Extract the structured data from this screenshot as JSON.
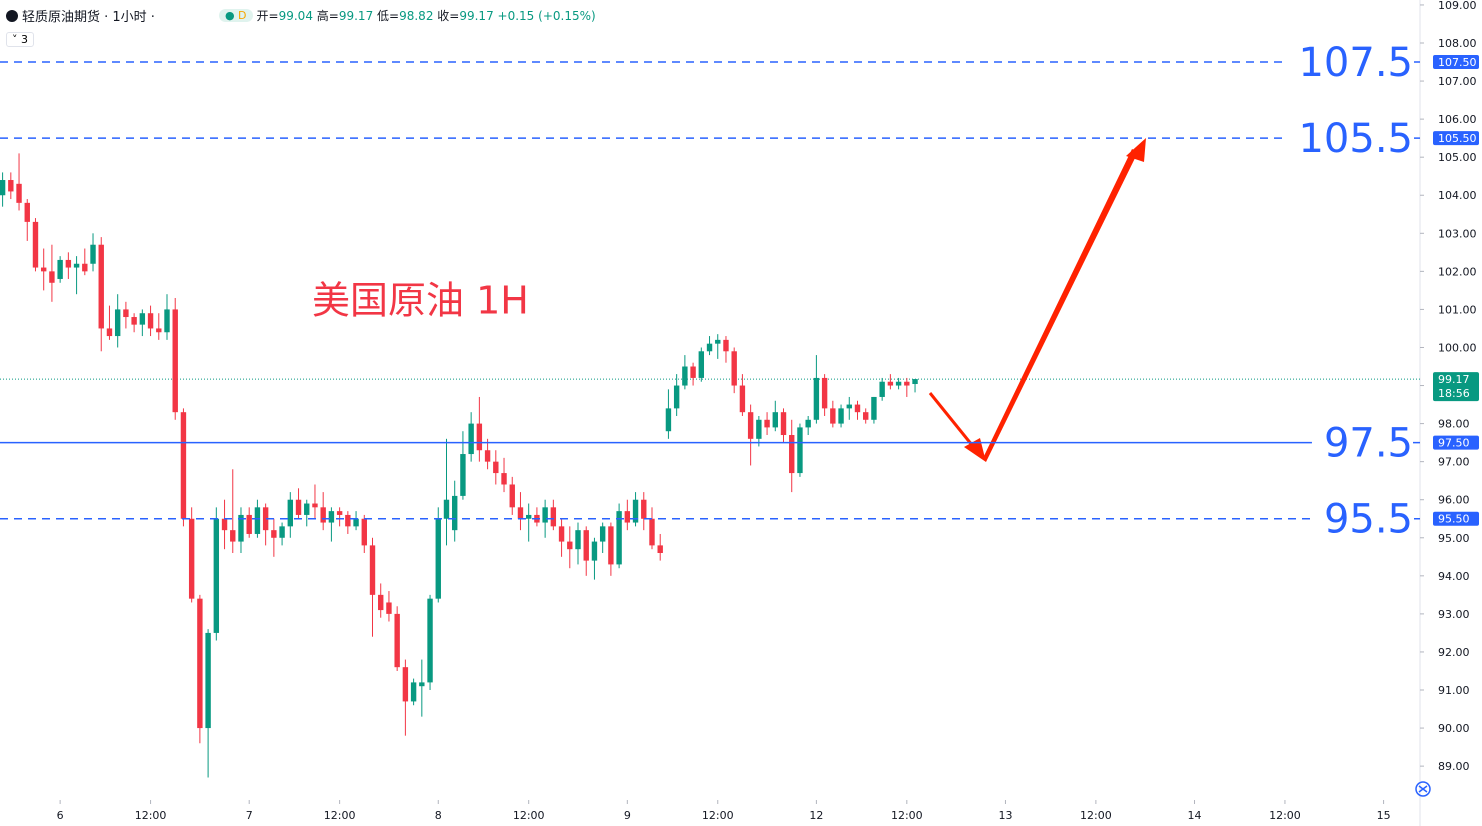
{
  "header": {
    "title": "轻质原油期货 · 1小时 ·",
    "badge": "D",
    "open_label": "开=",
    "open": 99.04,
    "high_label": "高=",
    "high": 99.17,
    "low_label": "低=",
    "low": 98.82,
    "close_label": "收=",
    "close": 99.17,
    "change": "+0.15",
    "change_pct": "(+0.15%)",
    "indicator": "3"
  },
  "chart_data": {
    "type": "candlestick",
    "annotation": "美国原油 1H",
    "up_color": "#089981",
    "down_color": "#f23645",
    "x": [
      0,
      1,
      2,
      3,
      4,
      5,
      6,
      7,
      8,
      9,
      10,
      11,
      12,
      13,
      14,
      15,
      16,
      17,
      18,
      19,
      20,
      21,
      22,
      23,
      24,
      25,
      26,
      27,
      28,
      29,
      30,
      31,
      32,
      33,
      34,
      35,
      36,
      37,
      38,
      39,
      40,
      41,
      42,
      43,
      44,
      45,
      46,
      47,
      48,
      49,
      50,
      51,
      52,
      53,
      54,
      55,
      56,
      57,
      58,
      59,
      60,
      61,
      62,
      63,
      64,
      65,
      66,
      67,
      68,
      69,
      70,
      71,
      72,
      73,
      74,
      75,
      76,
      77,
      78,
      79,
      80,
      81,
      82,
      83,
      84,
      85,
      86,
      87,
      88,
      89,
      90,
      91,
      92,
      93,
      94,
      95,
      96,
      97,
      98,
      99,
      100,
      101,
      102,
      103,
      104,
      105,
      106,
      107,
      108,
      109,
      110,
      111
    ],
    "ohlc": [
      [
        104.0,
        104.6,
        103.7,
        104.4
      ],
      [
        104.4,
        104.6,
        103.9,
        104.1
      ],
      [
        104.3,
        105.1,
        103.6,
        103.8
      ],
      [
        103.8,
        103.9,
        102.8,
        103.3
      ],
      [
        103.3,
        103.4,
        102.0,
        102.1
      ],
      [
        102.1,
        102.6,
        101.5,
        102.0
      ],
      [
        102.0,
        102.7,
        101.2,
        101.7
      ],
      [
        101.8,
        102.4,
        101.7,
        102.3
      ],
      [
        102.3,
        102.5,
        101.8,
        102.1
      ],
      [
        102.1,
        102.4,
        101.4,
        102.2
      ],
      [
        102.2,
        102.6,
        101.9,
        102.0
      ],
      [
        102.2,
        103.0,
        102.0,
        102.7
      ],
      [
        102.7,
        102.9,
        99.9,
        100.5
      ],
      [
        100.5,
        101.1,
        100.2,
        100.3
      ],
      [
        100.3,
        101.4,
        100.0,
        101.0
      ],
      [
        101.0,
        101.2,
        100.5,
        100.8
      ],
      [
        100.8,
        100.9,
        100.4,
        100.6
      ],
      [
        100.6,
        101.0,
        100.3,
        100.9
      ],
      [
        100.9,
        101.1,
        100.3,
        100.5
      ],
      [
        100.5,
        100.9,
        100.2,
        100.4
      ],
      [
        100.4,
        101.4,
        100.2,
        101.0
      ],
      [
        101.0,
        101.3,
        98.1,
        98.3
      ],
      [
        98.3,
        98.4,
        95.3,
        95.5
      ],
      [
        95.5,
        95.8,
        93.3,
        93.4
      ],
      [
        93.4,
        93.5,
        89.6,
        90.0
      ],
      [
        90.0,
        92.6,
        88.7,
        92.5
      ],
      [
        92.5,
        95.8,
        92.3,
        95.5
      ],
      [
        95.5,
        96.0,
        94.7,
        95.2
      ],
      [
        95.2,
        96.8,
        94.6,
        94.9
      ],
      [
        94.9,
        95.8,
        94.6,
        95.6
      ],
      [
        95.6,
        95.8,
        95.0,
        95.1
      ],
      [
        95.1,
        96.0,
        95.0,
        95.8
      ],
      [
        95.8,
        95.9,
        94.8,
        95.2
      ],
      [
        95.2,
        95.5,
        94.5,
        95.0
      ],
      [
        95.0,
        95.4,
        94.8,
        95.3
      ],
      [
        95.3,
        96.2,
        95.0,
        96.0
      ],
      [
        96.0,
        96.3,
        95.5,
        95.6
      ],
      [
        95.6,
        96.0,
        95.3,
        95.9
      ],
      [
        95.9,
        96.4,
        95.5,
        95.8
      ],
      [
        95.8,
        96.2,
        95.2,
        95.4
      ],
      [
        95.4,
        95.8,
        94.9,
        95.7
      ],
      [
        95.7,
        95.8,
        95.3,
        95.6
      ],
      [
        95.6,
        95.7,
        95.1,
        95.3
      ],
      [
        95.3,
        95.7,
        95.2,
        95.5
      ],
      [
        95.5,
        95.6,
        94.6,
        94.8
      ],
      [
        94.8,
        95.0,
        92.4,
        93.5
      ],
      [
        93.5,
        93.8,
        92.9,
        93.1
      ],
      [
        93.3,
        93.6,
        92.8,
        93.0
      ],
      [
        93.0,
        93.2,
        91.5,
        91.6
      ],
      [
        91.6,
        91.8,
        89.8,
        90.7
      ],
      [
        90.7,
        91.3,
        90.6,
        91.2
      ],
      [
        91.1,
        91.8,
        90.3,
        91.2
      ],
      [
        91.2,
        93.5,
        91.0,
        93.4
      ],
      [
        93.4,
        95.8,
        93.3,
        95.5
      ],
      [
        95.5,
        97.6,
        94.8,
        96.0
      ],
      [
        95.2,
        96.5,
        94.9,
        96.1
      ],
      [
        96.1,
        97.8,
        96.0,
        97.2
      ],
      [
        97.2,
        98.3,
        97.0,
        98.0
      ],
      [
        98.0,
        98.7,
        97.0,
        97.3
      ],
      [
        97.3,
        97.6,
        96.8,
        97.0
      ],
      [
        97.0,
        97.3,
        96.4,
        96.7
      ],
      [
        96.7,
        97.1,
        96.2,
        96.4
      ],
      [
        96.4,
        96.6,
        95.6,
        95.8
      ],
      [
        95.8,
        96.2,
        95.2,
        95.5
      ],
      [
        95.5,
        95.9,
        94.9,
        95.6
      ],
      [
        95.6,
        95.8,
        95.3,
        95.4
      ],
      [
        95.4,
        96.0,
        95.0,
        95.8
      ],
      [
        95.8,
        96.0,
        95.2,
        95.3
      ],
      [
        95.3,
        95.5,
        94.5,
        94.9
      ],
      [
        94.9,
        95.3,
        94.2,
        94.7
      ],
      [
        94.7,
        95.4,
        94.3,
        95.2
      ],
      [
        95.2,
        95.3,
        94.0,
        94.4
      ],
      [
        94.4,
        95.0,
        93.9,
        94.9
      ],
      [
        94.9,
        95.4,
        94.6,
        95.3
      ],
      [
        95.3,
        95.4,
        94.0,
        94.3
      ],
      [
        94.3,
        95.9,
        94.2,
        95.7
      ],
      [
        95.7,
        96.0,
        95.2,
        95.4
      ],
      [
        95.4,
        96.2,
        95.3,
        96.0
      ],
      [
        96.0,
        96.2,
        95.2,
        95.5
      ],
      [
        95.5,
        95.8,
        94.7,
        94.8
      ],
      [
        94.8,
        95.1,
        94.4,
        94.6
      ],
      [
        97.8,
        98.9,
        97.6,
        98.4
      ],
      [
        98.4,
        99.3,
        98.2,
        99.0
      ],
      [
        99.0,
        99.8,
        98.9,
        99.5
      ],
      [
        99.5,
        99.6,
        99.0,
        99.2
      ],
      [
        99.2,
        100.0,
        99.1,
        99.9
      ],
      [
        99.9,
        100.3,
        99.8,
        100.1
      ],
      [
        100.1,
        100.35,
        99.7,
        100.2
      ],
      [
        100.2,
        100.3,
        99.6,
        99.9
      ],
      [
        99.9,
        100.0,
        98.8,
        99.0
      ],
      [
        99.0,
        99.3,
        98.2,
        98.3
      ],
      [
        98.3,
        98.5,
        96.9,
        97.6
      ],
      [
        97.6,
        98.2,
        97.4,
        98.1
      ],
      [
        98.1,
        98.3,
        97.7,
        97.9
      ],
      [
        97.9,
        98.6,
        97.8,
        98.3
      ],
      [
        98.3,
        98.4,
        97.5,
        97.7
      ],
      [
        97.7,
        98.1,
        96.2,
        96.7
      ],
      [
        96.7,
        98.0,
        96.6,
        97.9
      ],
      [
        97.9,
        98.2,
        97.7,
        98.1
      ],
      [
        98.1,
        99.8,
        98.0,
        99.2
      ],
      [
        99.2,
        99.3,
        98.2,
        98.4
      ],
      [
        98.4,
        98.6,
        97.9,
        98.0
      ],
      [
        98.0,
        98.5,
        97.9,
        98.4
      ],
      [
        98.4,
        98.7,
        98.1,
        98.5
      ],
      [
        98.5,
        98.6,
        98.1,
        98.3
      ],
      [
        98.3,
        98.4,
        98.0,
        98.1
      ],
      [
        98.1,
        98.7,
        98.0,
        98.7
      ],
      [
        98.7,
        99.2,
        98.6,
        99.1
      ],
      [
        99.1,
        99.3,
        98.9,
        99.0
      ],
      [
        99.0,
        99.2,
        98.9,
        99.1
      ],
      [
        99.1,
        99.2,
        98.7,
        99.0
      ],
      [
        99.04,
        99.17,
        98.82,
        99.17
      ]
    ],
    "xlim": [
      -0.316,
      172.43
    ],
    "xticks": [
      {
        "value": 7,
        "label": "6"
      },
      {
        "value": 18,
        "label": "12:00"
      },
      {
        "value": 30,
        "label": "7"
      },
      {
        "value": 41,
        "label": "12:00"
      },
      {
        "value": 53,
        "label": "8"
      },
      {
        "value": 64,
        "label": "12:00"
      },
      {
        "value": 76,
        "label": "9"
      },
      {
        "value": 87,
        "label": "12:00"
      },
      {
        "value": 99,
        "label": "12"
      },
      {
        "value": 110,
        "label": "12:00"
      },
      {
        "value": 122,
        "label": "13"
      },
      {
        "value": 133,
        "label": "12:00"
      },
      {
        "value": 145,
        "label": "14"
      },
      {
        "value": 156,
        "label": "12:00"
      },
      {
        "value": 168,
        "label": "15"
      }
    ],
    "ylim": [
      88.11,
      109.13
    ],
    "yticks": [
      {
        "value": 89,
        "label": "89.00"
      },
      {
        "value": 90,
        "label": "90.00"
      },
      {
        "value": 91,
        "label": "91.00"
      },
      {
        "value": 92,
        "label": "92.00"
      },
      {
        "value": 93,
        "label": "93.00"
      },
      {
        "value": 94,
        "label": "94.00"
      },
      {
        "value": 95,
        "label": "95.00"
      },
      {
        "value": 96,
        "label": "96.00"
      },
      {
        "value": 97,
        "label": "97.00"
      },
      {
        "value": 98,
        "label": "98.00"
      },
      {
        "value": 99,
        "label": "99.00"
      },
      {
        "value": 100,
        "label": "100.00"
      },
      {
        "value": 101,
        "label": "101.00"
      },
      {
        "value": 102,
        "label": "102.00"
      },
      {
        "value": 103,
        "label": "103.00"
      },
      {
        "value": 104,
        "label": "104.00"
      },
      {
        "value": 105,
        "label": "105.00"
      },
      {
        "value": 106,
        "label": "106.00"
      },
      {
        "value": 107,
        "label": "107.00"
      },
      {
        "value": 108,
        "label": "108.00"
      },
      {
        "value": 109,
        "label": "109.00"
      }
    ],
    "hlines": [
      {
        "value": 107.5,
        "label": "107.5",
        "badge": "107.50",
        "style": "dashed",
        "color": "#2962ff"
      },
      {
        "value": 105.5,
        "label": "105.5",
        "badge": "105.50",
        "style": "dashed",
        "color": "#2962ff"
      },
      {
        "value": 97.5,
        "label": "97.5",
        "badge": "97.50",
        "style": "solid",
        "color": "#2962ff"
      },
      {
        "value": 95.5,
        "label": "95.5",
        "badge": "95.50",
        "style": "dashed",
        "color": "#2962ff"
      }
    ],
    "last_price": {
      "value": 99.17,
      "label": "99.17",
      "countdown": "18:56",
      "color": "#089981"
    }
  }
}
